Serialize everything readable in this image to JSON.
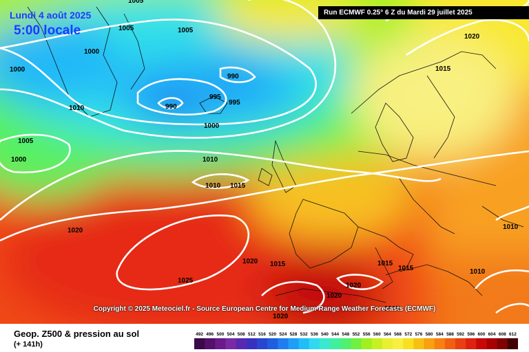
{
  "header": {
    "forecast_date": "Lundi 4 août 2025",
    "forecast_time": "5:00 locale",
    "run_info": "Run ECMWF 0.25° 6 Z du Mardi 29 juillet 2025"
  },
  "copyright": "Copyright © 2025 Meteociel.fr - Source European Centre for Medium-Range Weather Forecasts (ECMWF)",
  "footer": {
    "title": "Geop. Z500 & pression au sol",
    "subtitle": "(+ 141h)"
  },
  "legend": {
    "values": [
      "492",
      "496",
      "500",
      "504",
      "508",
      "512",
      "516",
      "520",
      "524",
      "528",
      "532",
      "536",
      "540",
      "544",
      "548",
      "552",
      "556",
      "560",
      "564",
      "568",
      "572",
      "576",
      "580",
      "584",
      "588",
      "592",
      "596",
      "600",
      "604",
      "608",
      "612"
    ],
    "colors": [
      "#3a0a4a",
      "#55106a",
      "#6a1a8a",
      "#7a2aa5",
      "#5a28b0",
      "#3a30c0",
      "#2a46d0",
      "#1e5ee0",
      "#1e7ef0",
      "#1e9ef8",
      "#20bef8",
      "#30d8f0",
      "#3ae8d0",
      "#40f0a0",
      "#50f070",
      "#70f040",
      "#a0f020",
      "#c8f020",
      "#e8f030",
      "#f8f040",
      "#f8e020",
      "#f8c010",
      "#f8a010",
      "#f88010",
      "#f06010",
      "#e84010",
      "#e02010",
      "#c80808",
      "#a80000",
      "#800000",
      "#400000"
    ]
  },
  "isobars": [
    {
      "label": "1005",
      "lon": "left"
    },
    {
      "label": "1005"
    },
    {
      "label": "1005"
    },
    {
      "label": "1000"
    },
    {
      "label": "1000"
    },
    {
      "label": "990"
    },
    {
      "label": "990"
    },
    {
      "label": "995"
    },
    {
      "label": "995"
    },
    {
      "label": "1010"
    },
    {
      "label": "1000"
    },
    {
      "label": "1005"
    },
    {
      "label": "1000"
    },
    {
      "label": "1010"
    },
    {
      "label": "1010"
    },
    {
      "label": "1015"
    },
    {
      "label": "1020"
    },
    {
      "label": "1015"
    },
    {
      "label": "1020"
    },
    {
      "label": "1020"
    },
    {
      "label": "1015"
    },
    {
      "label": "1025"
    },
    {
      "label": "1020"
    },
    {
      "label": "1020"
    },
    {
      "label": "1015"
    },
    {
      "label": "1015"
    },
    {
      "label": "1010"
    },
    {
      "label": "1010"
    },
    {
      "label": "1015"
    },
    {
      "label": "1020"
    }
  ]
}
